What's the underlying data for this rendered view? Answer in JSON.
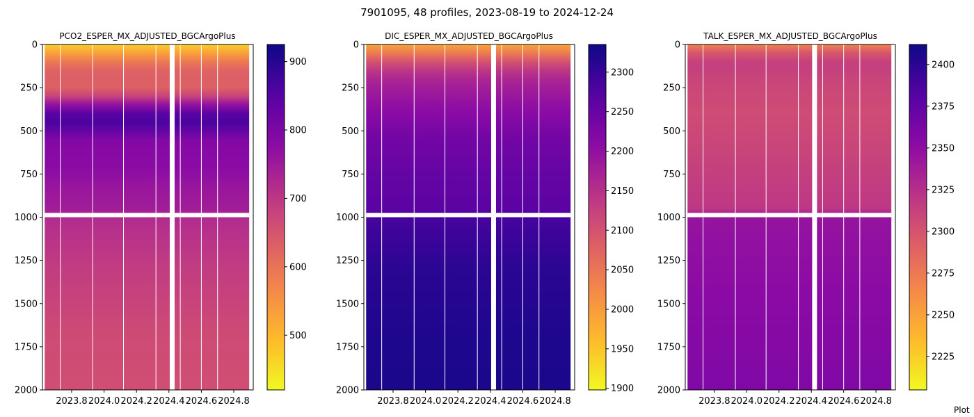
{
  "figure": {
    "suptitle": "7901095, 48 profiles, 2023-08-19 to 2024-12-24",
    "footer_text": "Plot"
  },
  "chart_data": [
    {
      "type": "heatmap",
      "title": "PCO2_ESPER_MX_ADJUSTED_BGCArgoPlus",
      "colormap": "plasma_r",
      "x_axis": {
        "ticks": [
          2023.8,
          2024.0,
          2024.2,
          2024.4,
          2024.6,
          2024.8
        ],
        "tick_labels": [
          "2023.8",
          "2024.0",
          "2024.2",
          "2024.4",
          "2024.6",
          "2024.8"
        ],
        "range": [
          2023.62,
          2024.92
        ]
      },
      "y_axis": {
        "ticks": [
          0,
          250,
          500,
          750,
          1000,
          1250,
          1500,
          1750,
          2000
        ],
        "tick_labels": [
          "0",
          "250",
          "500",
          "750",
          "1000",
          "1250",
          "1500",
          "1750",
          "2000"
        ],
        "range": [
          0,
          2000
        ],
        "inverted": true
      },
      "colorbar": {
        "range": [
          420,
          925
        ],
        "ticks": [
          500,
          600,
          700,
          800,
          900
        ],
        "tick_labels": [
          "500",
          "600",
          "700",
          "800",
          "900"
        ]
      },
      "data_extent": {
        "x": [
          2023.634,
          2024.895
        ],
        "depth_max": 2000
      },
      "profile_gaps": [
        2023.73,
        2023.93,
        2024.12,
        2024.32,
        2024.47,
        2024.6,
        2024.7
      ],
      "missing_gap": [
        2024.405,
        2024.435
      ],
      "depth_gap": [
        975,
        1000
      ],
      "depth_profile": [
        [
          0,
          470
        ],
        [
          40,
          520
        ],
        [
          80,
          565
        ],
        [
          120,
          615
        ],
        [
          170,
          635
        ],
        [
          250,
          630
        ],
        [
          320,
          700
        ],
        [
          360,
          790
        ],
        [
          420,
          875
        ],
        [
          470,
          855
        ],
        [
          560,
          785
        ],
        [
          700,
          780
        ],
        [
          850,
          755
        ],
        [
          960,
          745
        ],
        [
          1000,
          720
        ],
        [
          1300,
          690
        ],
        [
          1700,
          665
        ],
        [
          2000,
          660
        ]
      ]
    },
    {
      "type": "heatmap",
      "title": "DIC_ESPER_MX_ADJUSTED_BGCArgoPlus",
      "colormap": "plasma_r",
      "x_axis": {
        "ticks": [
          2023.8,
          2024.0,
          2024.2,
          2024.4,
          2024.6,
          2024.8
        ],
        "tick_labels": [
          "2023.8",
          "2024.0",
          "2024.2",
          "2024.4",
          "2024.6",
          "2024.8"
        ],
        "range": [
          2023.62,
          2024.92
        ]
      },
      "y_axis": {
        "ticks": [
          0,
          250,
          500,
          750,
          1000,
          1250,
          1500,
          1750,
          2000
        ],
        "tick_labels": [
          "0",
          "250",
          "500",
          "750",
          "1000",
          "1250",
          "1500",
          "1750",
          "2000"
        ],
        "range": [
          0,
          2000
        ],
        "inverted": true
      },
      "colorbar": {
        "range": [
          1898,
          2335
        ],
        "ticks": [
          1900,
          1950,
          2000,
          2050,
          2100,
          2150,
          2200,
          2250,
          2300
        ],
        "tick_labels": [
          "1900",
          "1950",
          "2000",
          "2050",
          "2100",
          "2150",
          "2200",
          "2250",
          "2300"
        ]
      },
      "data_extent": {
        "x": [
          2023.634,
          2024.895
        ],
        "depth_max": 2000
      },
      "profile_gaps": [
        2023.73,
        2023.93,
        2024.12,
        2024.32,
        2024.47,
        2024.6,
        2024.7
      ],
      "missing_gap": [
        2024.405,
        2024.435
      ],
      "depth_gap": [
        975,
        1000
      ],
      "depth_profile": [
        [
          0,
          1990
        ],
        [
          40,
          2030
        ],
        [
          80,
          2080
        ],
        [
          120,
          2120
        ],
        [
          180,
          2160
        ],
        [
          300,
          2190
        ],
        [
          420,
          2215
        ],
        [
          560,
          2240
        ],
        [
          760,
          2255
        ],
        [
          960,
          2265
        ],
        [
          1000,
          2285
        ],
        [
          1300,
          2310
        ],
        [
          1700,
          2320
        ],
        [
          2000,
          2325
        ]
      ]
    },
    {
      "type": "heatmap",
      "title": "TALK_ESPER_MX_ADJUSTED_BGCArgoPlus",
      "colormap": "plasma_r",
      "x_axis": {
        "ticks": [
          2023.8,
          2024.0,
          2024.2,
          2024.4,
          2024.6,
          2024.8
        ],
        "tick_labels": [
          "2023.8",
          "2024.0",
          "2024.2",
          "2024.4",
          "2024.6",
          "2024.8"
        ],
        "range": [
          2023.62,
          2024.92
        ]
      },
      "y_axis": {
        "ticks": [
          0,
          250,
          500,
          750,
          1000,
          1250,
          1500,
          1750,
          2000
        ],
        "tick_labels": [
          "0",
          "250",
          "500",
          "750",
          "1000",
          "1250",
          "1500",
          "1750",
          "2000"
        ],
        "range": [
          0,
          2000
        ],
        "inverted": true
      },
      "colorbar": {
        "range": [
          2205,
          2412
        ],
        "ticks": [
          2225,
          2250,
          2275,
          2300,
          2325,
          2350,
          2375,
          2400
        ],
        "tick_labels": [
          "2225",
          "2250",
          "2275",
          "2300",
          "2325",
          "2350",
          "2375",
          "2400"
        ]
      },
      "data_extent": {
        "x": [
          2023.634,
          2024.895
        ],
        "depth_max": 2000
      },
      "profile_gaps": [
        2023.73,
        2023.93,
        2024.12,
        2024.32,
        2024.47,
        2024.6,
        2024.7
      ],
      "missing_gap": [
        2024.405,
        2024.435
      ],
      "depth_gap": [
        975,
        1000
      ],
      "depth_profile": [
        [
          0,
          2270
        ],
        [
          40,
          2295
        ],
        [
          80,
          2310
        ],
        [
          120,
          2315
        ],
        [
          200,
          2310
        ],
        [
          400,
          2305
        ],
        [
          600,
          2310
        ],
        [
          800,
          2315
        ],
        [
          960,
          2320
        ],
        [
          1000,
          2345
        ],
        [
          1300,
          2350
        ],
        [
          1700,
          2355
        ],
        [
          2000,
          2358
        ]
      ]
    }
  ]
}
